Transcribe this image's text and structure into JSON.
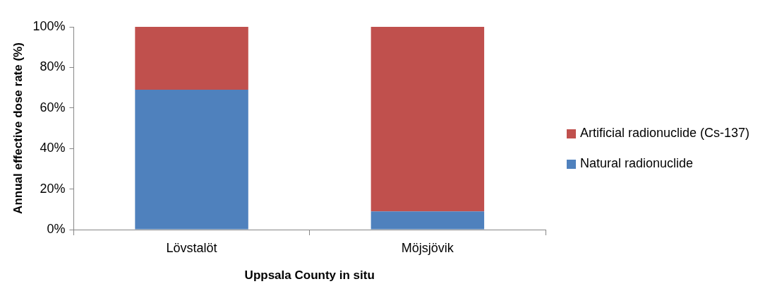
{
  "chart_data": {
    "type": "bar",
    "stacked": true,
    "xlabel": "Uppsala County in situ",
    "ylabel": "Annual effective dose rate (%)",
    "categories": [
      "Lövstalöt",
      "Möjsjövik"
    ],
    "series": [
      {
        "name": "Natural radionuclide",
        "color": "#4f81bd",
        "values": [
          69,
          9
        ]
      },
      {
        "name": "Artificial radionuclide (Cs-137)",
        "color": "#c0504d",
        "values": [
          31,
          91
        ]
      }
    ],
    "ylim": [
      0,
      100
    ],
    "yticks": [
      {
        "value": 0,
        "label": "0%"
      },
      {
        "value": 20,
        "label": "20%"
      },
      {
        "value": 40,
        "label": "40%"
      },
      {
        "value": 60,
        "label": "60%"
      },
      {
        "value": 80,
        "label": "80%"
      },
      {
        "value": 100,
        "label": "100%"
      }
    ],
    "grid": false,
    "legend": "right"
  }
}
